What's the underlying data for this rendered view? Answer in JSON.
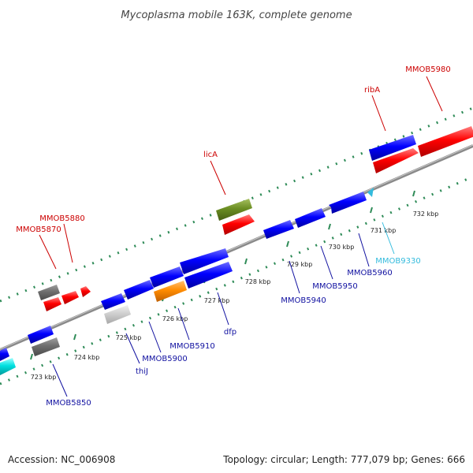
{
  "title": "Mycoplasma mobile 163K, complete genome",
  "colors": {
    "forward_gene": "#ff0000",
    "reverse_gene": "#0000ff",
    "trna": "#00e0e0",
    "other_forward": "#6b8e23",
    "other_reverse": "#ff8c00",
    "pseudo": "#999999",
    "pseudo_light": "#cccccc",
    "backbone": "#8a8a8a",
    "ticks": "#2e8b57",
    "label_forward": "#cc0000",
    "label_reverse": "#1010a0",
    "label_trna": "#33bbdd"
  },
  "ticks": [
    {
      "label": "723 kbp"
    },
    {
      "label": "724 kbp"
    },
    {
      "label": "725 kbp"
    },
    {
      "label": "726 kbp"
    },
    {
      "label": "727 kbp"
    },
    {
      "label": "728 kbp"
    },
    {
      "label": "729 kbp"
    },
    {
      "label": "730 kbp"
    },
    {
      "label": "731 kbp"
    },
    {
      "label": "732 kbp"
    }
  ],
  "gene_labels": [
    {
      "text": "MMOB5980",
      "strand": "forward"
    },
    {
      "text": "ribA",
      "strand": "forward"
    },
    {
      "text": "licA",
      "strand": "forward"
    },
    {
      "text": "MMOB5880",
      "strand": "forward"
    },
    {
      "text": "MMOB5870",
      "strand": "forward"
    },
    {
      "text": "MMOB9330",
      "strand": "trna"
    },
    {
      "text": "MMOB5960",
      "strand": "reverse"
    },
    {
      "text": "MMOB5950",
      "strand": "reverse"
    },
    {
      "text": "MMOB5940",
      "strand": "reverse"
    },
    {
      "text": "dfp",
      "strand": "reverse"
    },
    {
      "text": "MMOB5910",
      "strand": "reverse"
    },
    {
      "text": "MMOB5900",
      "strand": "reverse"
    },
    {
      "text": "thiJ",
      "strand": "reverse"
    },
    {
      "text": "MMOB5850",
      "strand": "reverse"
    }
  ],
  "footer": {
    "accession": "Accession: NC_006908",
    "summary": "Topology: circular; Length: 777,079 bp; Genes: 666"
  }
}
